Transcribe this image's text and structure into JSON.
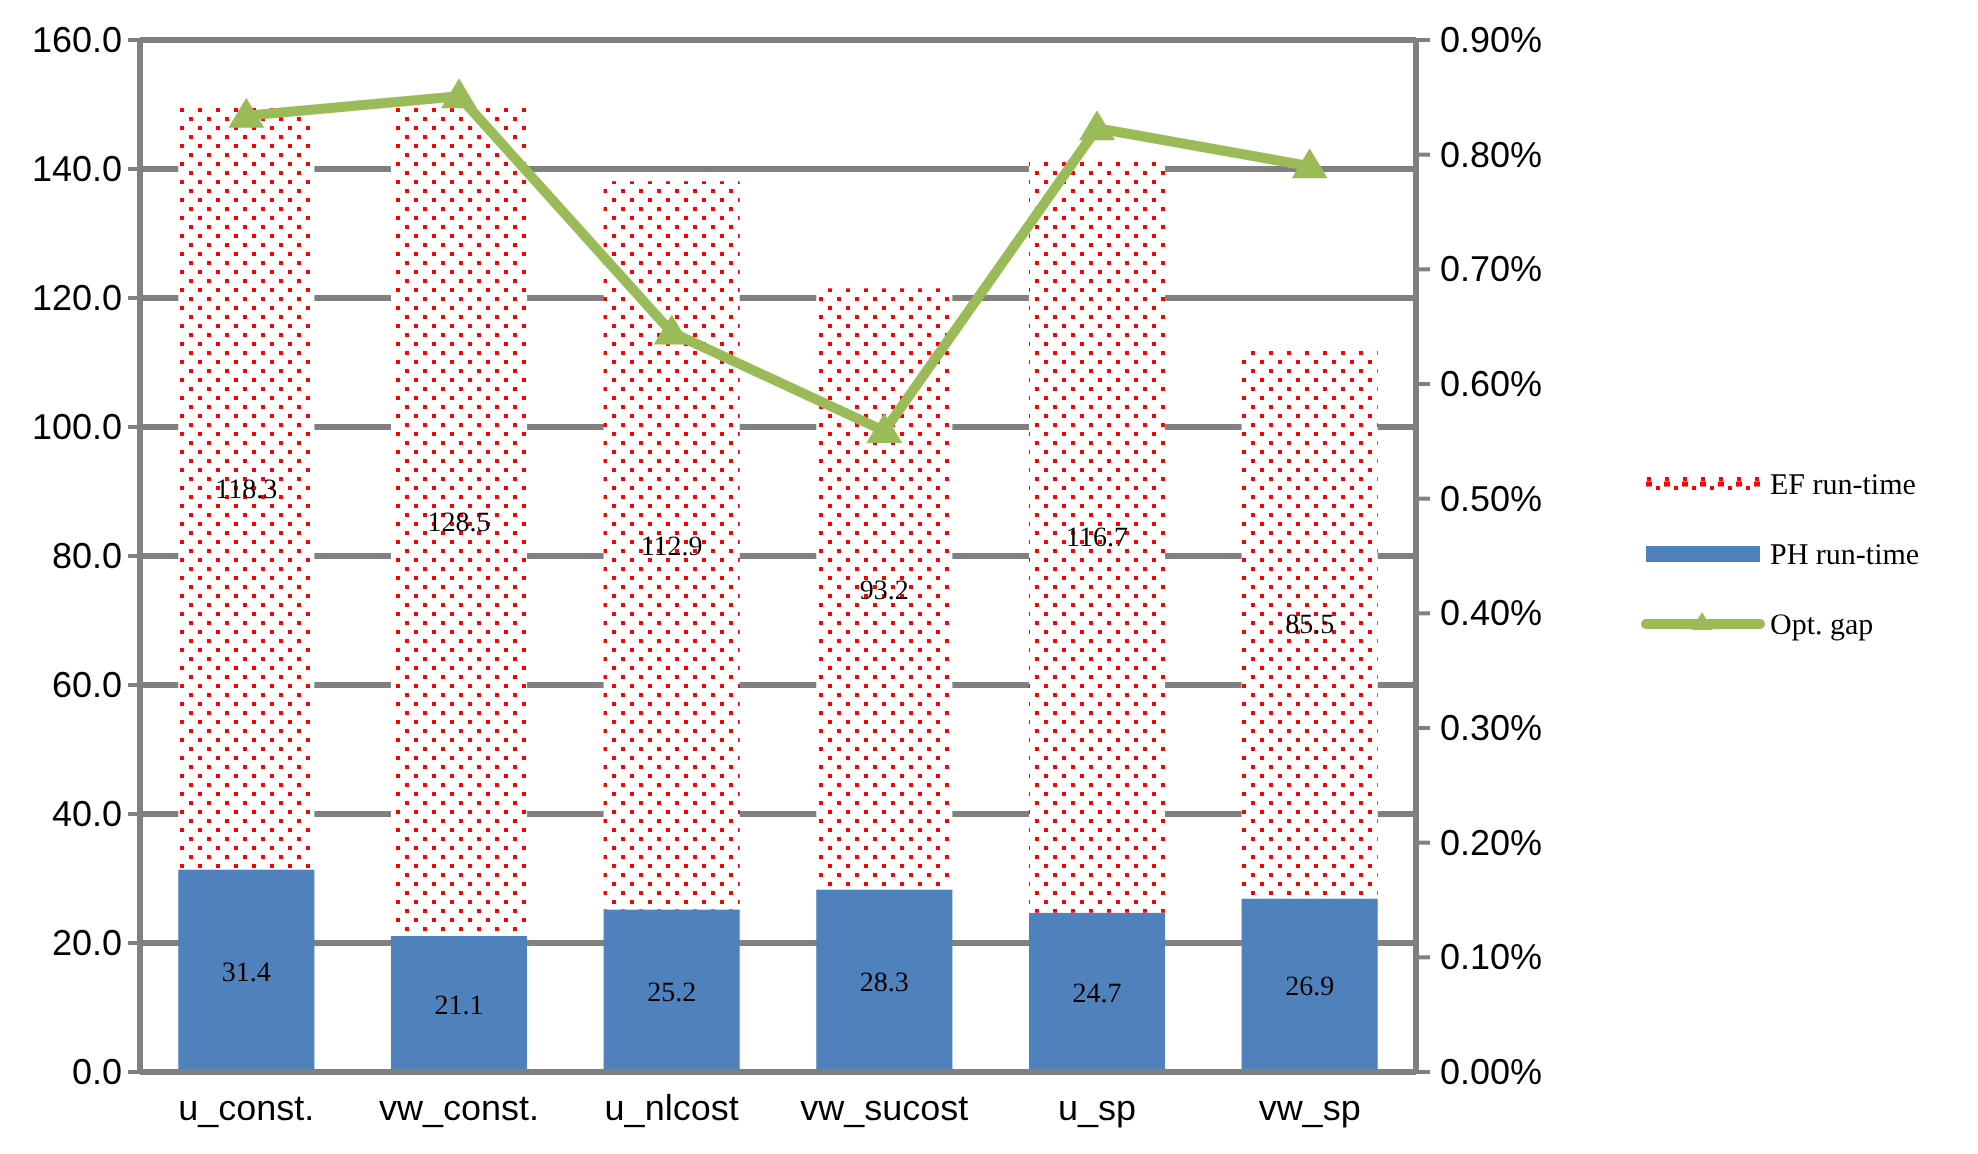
{
  "chart_data": {
    "type": "bar",
    "stacked": true,
    "categories": [
      "u_const.",
      "vw_const.",
      "u_nlcost",
      "vw_sucost",
      "u_sp",
      "vw_sp"
    ],
    "series": [
      {
        "name": "PH run-time",
        "color": "#4f81bd",
        "values": [
          31.4,
          21.1,
          25.2,
          28.3,
          24.7,
          26.9
        ],
        "value_labels": [
          "31.4",
          "21.1",
          "25.2",
          "28.3",
          "24.7",
          "26.9"
        ]
      },
      {
        "name": "EF run-time",
        "color": "#ff0000",
        "values": [
          118.3,
          128.5,
          112.9,
          93.2,
          116.7,
          85.5
        ],
        "value_labels": [
          "118.3",
          "128.5",
          "112.9",
          "93.2",
          "116.7",
          "85.5"
        ]
      },
      {
        "name": "Opt. gap",
        "type": "line",
        "axis": "y2",
        "color": "#9bbb59",
        "marker": "triangle",
        "values": [
          0.834,
          0.851,
          0.645,
          0.559,
          0.823,
          0.79
        ]
      }
    ],
    "ylim": [
      0,
      160
    ],
    "yticks": [
      {
        "value": 0,
        "label": "0.0"
      },
      {
        "value": 20,
        "label": "20.0"
      },
      {
        "value": 40,
        "label": "40.0"
      },
      {
        "value": 60,
        "label": "60.0"
      },
      {
        "value": 80,
        "label": "80.0"
      },
      {
        "value": 100,
        "label": "100.0"
      },
      {
        "value": 120,
        "label": "120.0"
      },
      {
        "value": 140,
        "label": "140.0"
      },
      {
        "value": 160,
        "label": "160.0"
      }
    ],
    "y2lim": [
      0,
      0.9
    ],
    "y2ticks": [
      {
        "value": 0,
        "label": "0.00%"
      },
      {
        "value": 0.1,
        "label": "0.10%"
      },
      {
        "value": 0.2,
        "label": "0.20%"
      },
      {
        "value": 0.3,
        "label": "0.30%"
      },
      {
        "value": 0.4,
        "label": "0.40%"
      },
      {
        "value": 0.5,
        "label": "0.50%"
      },
      {
        "value": 0.6,
        "label": "0.60%"
      },
      {
        "value": 0.7,
        "label": "0.70%"
      },
      {
        "value": 0.8,
        "label": "0.80%"
      },
      {
        "value": 0.9,
        "label": "0.90%"
      }
    ],
    "grid": "y",
    "legend": "right"
  }
}
